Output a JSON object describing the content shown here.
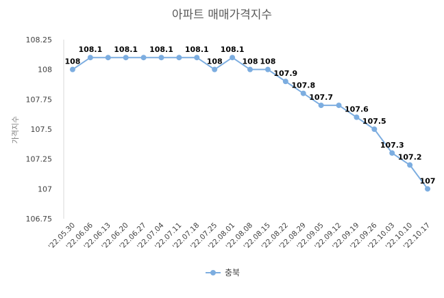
{
  "chart_data": {
    "type": "line",
    "title": "아파트 매매가격지수",
    "xlabel": "",
    "ylabel": "가격지수",
    "ylim": [
      106.75,
      108.25
    ],
    "yticks": [
      "108.25",
      "108",
      "107.75",
      "107.5",
      "107.25",
      "107",
      "106.75"
    ],
    "categories": [
      "'22.05.30",
      "'22.06.06",
      "'22.06.13",
      "'22.06.20",
      "'22.06.27",
      "'22.07.04",
      "'22.07.11",
      "'22.07.18",
      "'22.07.25",
      "'22.08.01",
      "'22.08.08",
      "'22.08.15",
      "'22.08.22",
      "'22.08.29",
      "'22.09.05",
      "'22.09.12",
      "'22.09.19",
      "'22.09.26",
      "'22.10.03",
      "'22.10.10",
      "'22.10.17"
    ],
    "series": [
      {
        "name": "충북",
        "values": [
          108,
          108.1,
          108.1,
          108.1,
          108.1,
          108.1,
          108.1,
          108.1,
          108,
          108.1,
          108,
          108,
          107.9,
          107.8,
          107.7,
          107.7,
          107.6,
          107.5,
          107.3,
          107.2,
          107
        ],
        "labels": [
          "108",
          "108.1",
          "",
          "108.1",
          "",
          "108.1",
          "",
          "108.1",
          "108",
          "108.1",
          "108",
          "108",
          "107.9",
          "107.8",
          "107.7",
          "",
          "107.6",
          "107.5",
          "107.3",
          "107.2",
          "107"
        ],
        "color": "#7cade0"
      }
    ],
    "grid": false,
    "legend": "bottom"
  }
}
